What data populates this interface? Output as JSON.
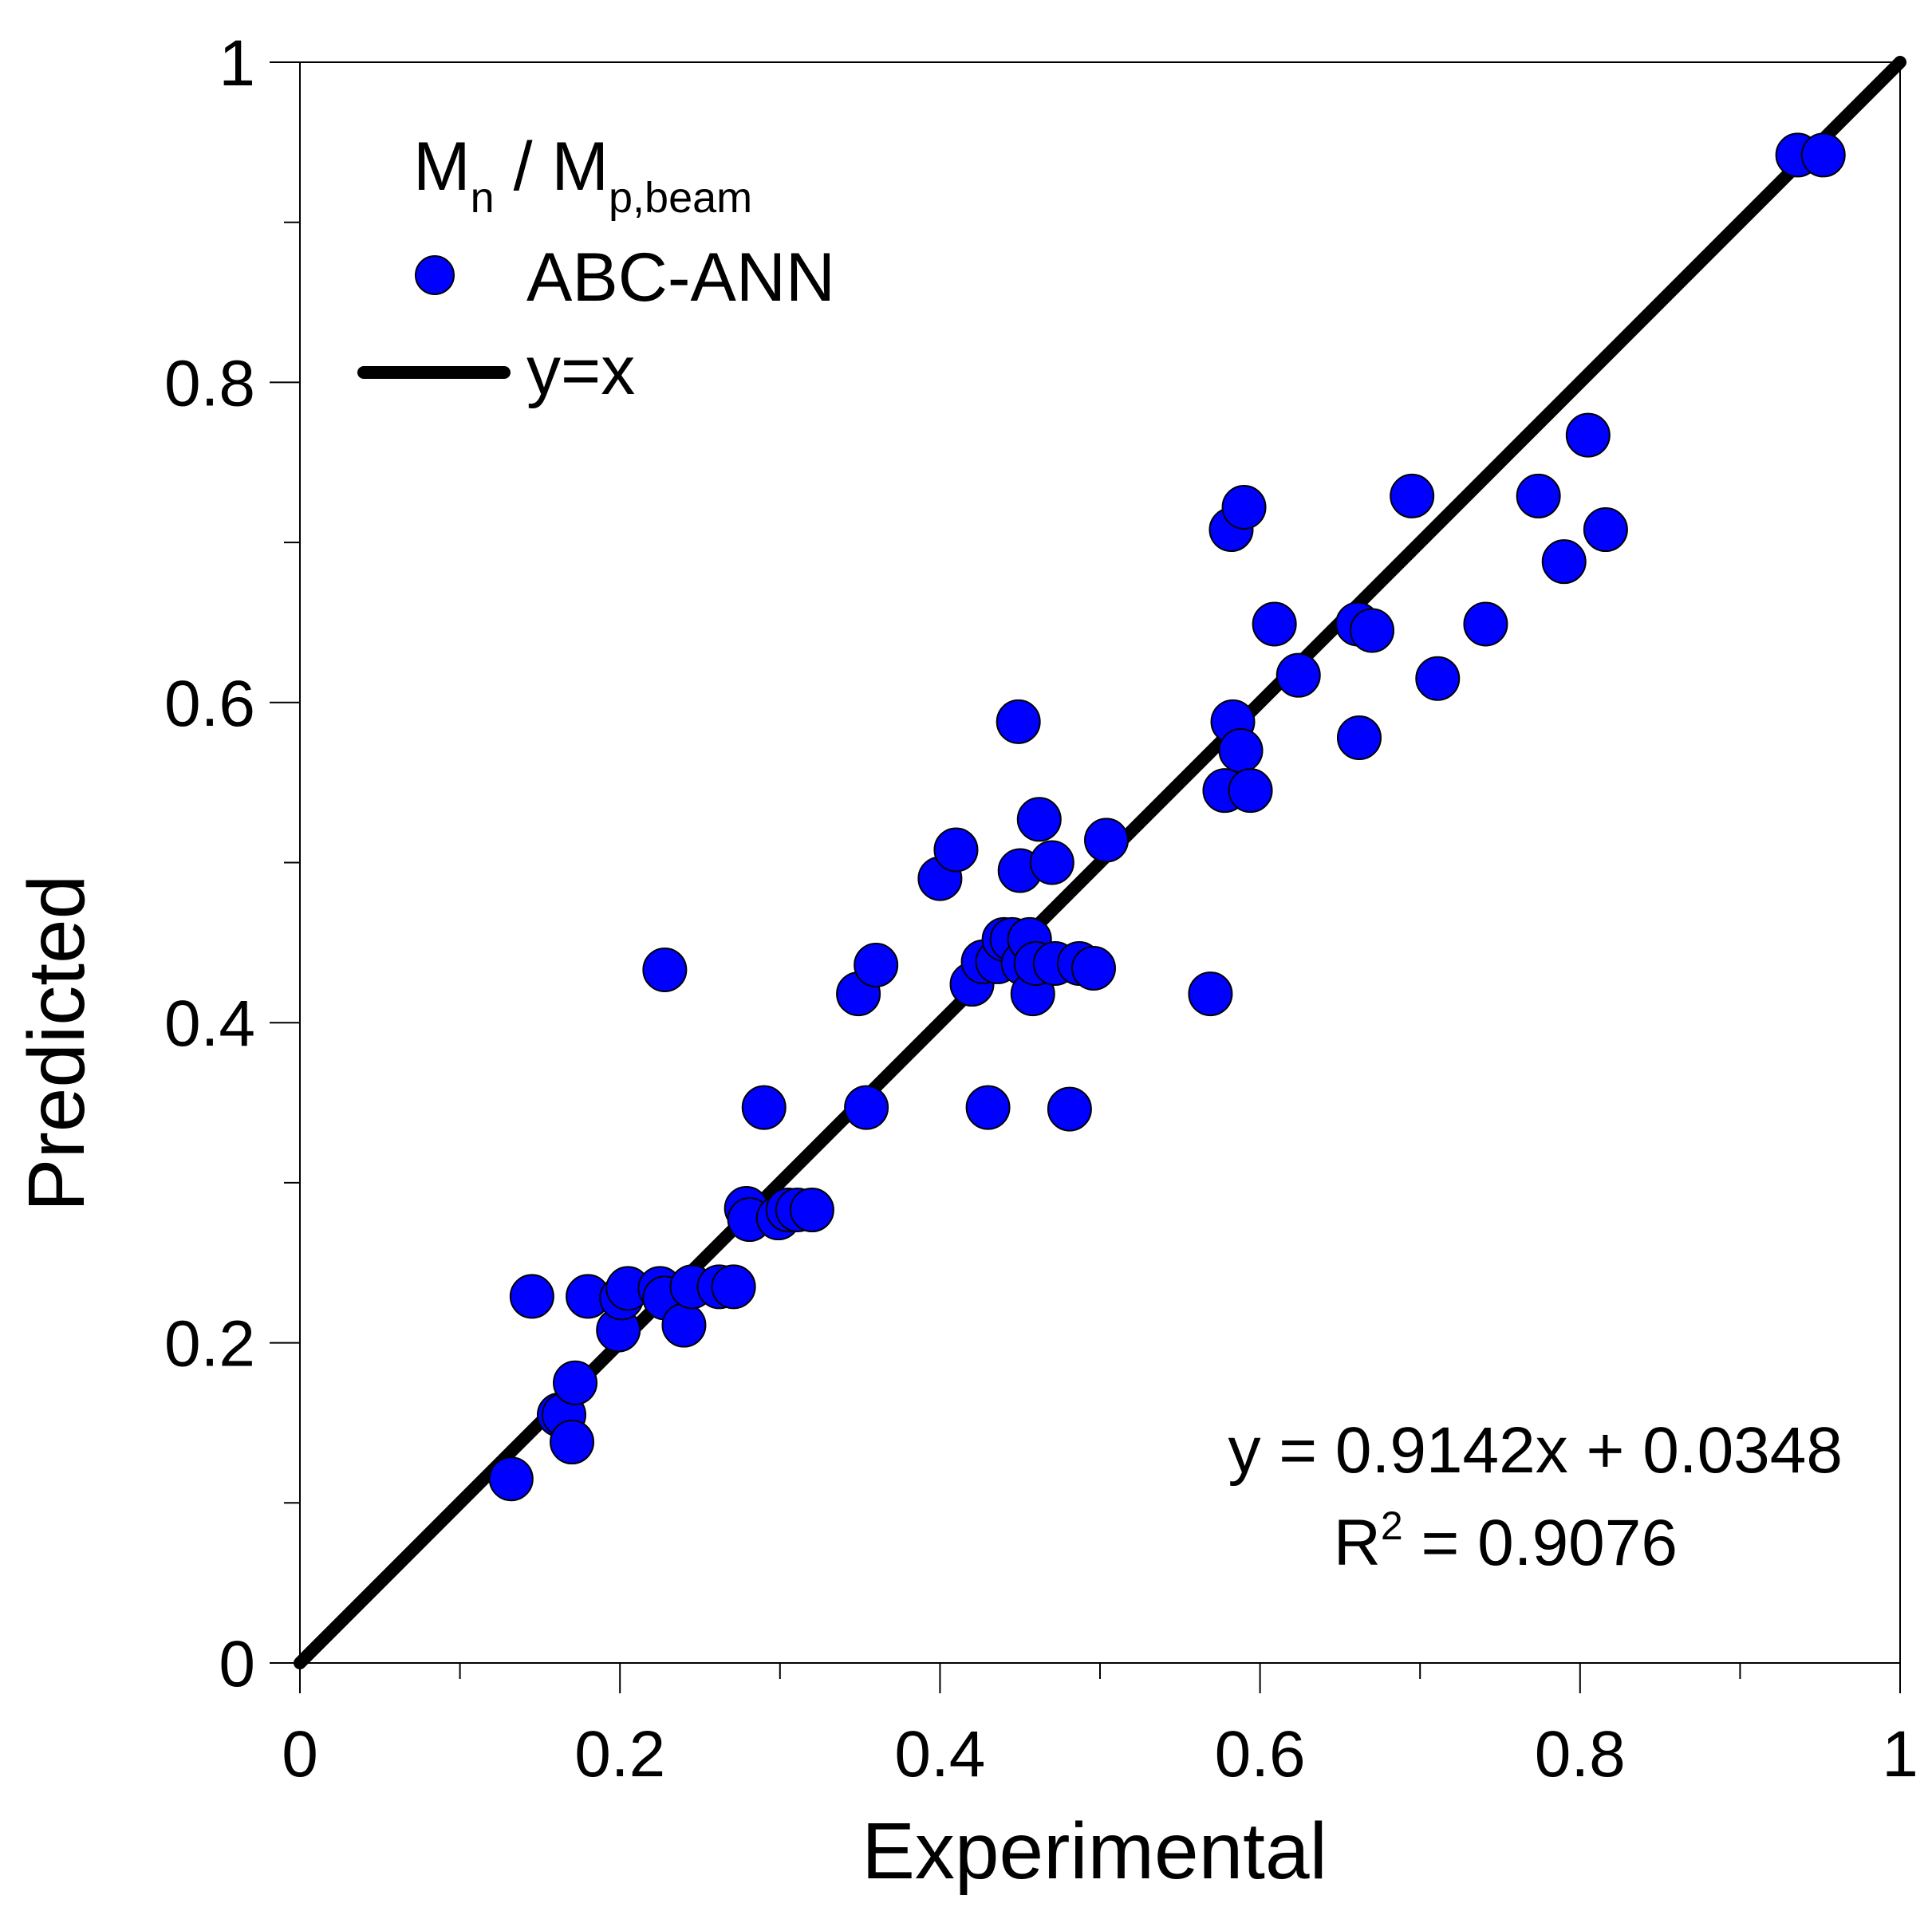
{
  "chart_data": {
    "type": "scatter",
    "xlabel": "Experimental",
    "ylabel": "Predicted",
    "xlim": [
      0,
      1
    ],
    "ylim": [
      0,
      1
    ],
    "x_ticks": [
      "0",
      "0.2",
      "0.4",
      "0.6",
      "0.8",
      "1"
    ],
    "y_ticks": [
      "0",
      "0.2",
      "0.4",
      "0.6",
      "0.8",
      "1"
    ],
    "x_tick_values": [
      0,
      0.2,
      0.4,
      0.6,
      0.8,
      1
    ],
    "y_tick_values": [
      0,
      0.2,
      0.4,
      0.6,
      0.8,
      1
    ],
    "minor_tick_step": 0.1,
    "grid": false,
    "legend": {
      "position": "top-left",
      "title_main": "M",
      "title_sub1": "n",
      "title_mid": " / M",
      "title_sub2": "p,beam",
      "entries": [
        "ABC-ANN",
        "y=x"
      ]
    },
    "annotation": {
      "position": "bottom-right",
      "equation": "y = 0.9142x + 0.0348",
      "r2_prefix": "R",
      "r2_sup": "2",
      "r2_rest": " = 0.9076"
    },
    "colors": {
      "points": "#0000ff",
      "point_edge": "#000000",
      "line": "#000000"
    },
    "series": [
      {
        "name": "ABC-ANN",
        "kind": "scatter",
        "x": [
          0.132,
          0.145,
          0.162,
          0.165,
          0.17,
          0.172,
          0.18,
          0.199,
          0.201,
          0.205,
          0.225,
          0.228,
          0.228,
          0.24,
          0.245,
          0.262,
          0.271,
          0.279,
          0.281,
          0.29,
          0.299,
          0.305,
          0.311,
          0.32,
          0.349,
          0.354,
          0.36,
          0.4,
          0.41,
          0.42,
          0.427,
          0.43,
          0.436,
          0.44,
          0.445,
          0.449,
          0.45,
          0.452,
          0.456,
          0.458,
          0.46,
          0.462,
          0.47,
          0.472,
          0.481,
          0.487,
          0.496,
          0.504,
          0.569,
          0.578,
          0.582,
          0.583,
          0.588,
          0.59,
          0.594,
          0.609,
          0.624,
          0.661,
          0.662,
          0.67,
          0.695,
          0.711,
          0.741,
          0.774,
          0.79,
          0.805,
          0.816,
          0.936,
          0.952
        ],
        "y": [
          0.115,
          0.229,
          0.155,
          0.155,
          0.138,
          0.175,
          0.229,
          0.208,
          0.228,
          0.234,
          0.234,
          0.228,
          0.433,
          0.211,
          0.235,
          0.235,
          0.235,
          0.284,
          0.277,
          0.347,
          0.278,
          0.283,
          0.283,
          0.283,
          0.418,
          0.347,
          0.436,
          0.49,
          0.508,
          0.424,
          0.438,
          0.347,
          0.438,
          0.452,
          0.452,
          0.588,
          0.495,
          0.437,
          0.452,
          0.418,
          0.437,
          0.527,
          0.5,
          0.437,
          0.346,
          0.437,
          0.434,
          0.514,
          0.418,
          0.545,
          0.708,
          0.588,
          0.57,
          0.722,
          0.545,
          0.649,
          0.617,
          0.649,
          0.578,
          0.645,
          0.729,
          0.615,
          0.649,
          0.729,
          0.688,
          0.767,
          0.708,
          0.942,
          0.942
        ]
      },
      {
        "name": "y=x",
        "kind": "line",
        "x": [
          0,
          1
        ],
        "y": [
          0,
          1
        ]
      }
    ]
  }
}
